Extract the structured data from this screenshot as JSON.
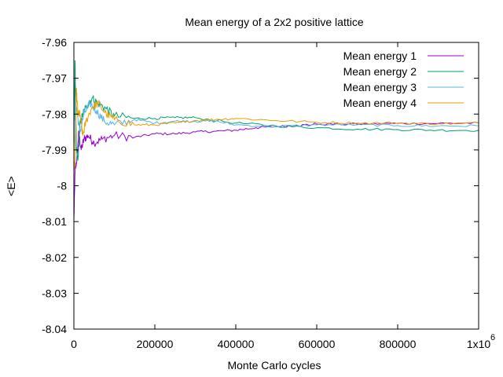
{
  "chart_data": {
    "type": "line",
    "title": "Mean energy of a 2x2 positive lattice",
    "xlabel": "Monte Carlo cycles",
    "ylabel": "<E>",
    "xlim": [
      0,
      1000000
    ],
    "ylim": [
      -8.04,
      -7.96
    ],
    "x_tick_labels": [
      "0",
      "200000",
      "400000",
      "600000",
      "800000",
      "1x10"
    ],
    "x_tick_values": [
      0,
      200000,
      400000,
      600000,
      800000,
      1000000
    ],
    "x_exponent_label": "6",
    "y_tick_labels": [
      "-7.96",
      "-7.97",
      "-7.98",
      "-7.99",
      "-8",
      "-8.01",
      "-8.02",
      "-8.03",
      "-8.04"
    ],
    "y_tick_values": [
      -7.96,
      -7.97,
      -7.98,
      -7.99,
      -8.0,
      -8.01,
      -8.02,
      -8.03,
      -8.04
    ],
    "grid": false,
    "legend_position": "top-right",
    "series": [
      {
        "name": "Mean energy 1",
        "color": "#9400d3",
        "points": [
          [
            0,
            -8.01
          ],
          [
            3000,
            -7.996
          ],
          [
            8000,
            -7.992
          ],
          [
            12000,
            -7.985
          ],
          [
            18000,
            -7.99
          ],
          [
            25000,
            -7.987
          ],
          [
            35000,
            -7.986
          ],
          [
            50000,
            -7.988
          ],
          [
            70000,
            -7.987
          ],
          [
            100000,
            -7.986
          ],
          [
            150000,
            -7.9865
          ],
          [
            200000,
            -7.9855
          ],
          [
            250000,
            -7.9855
          ],
          [
            300000,
            -7.985
          ],
          [
            350000,
            -7.9848
          ],
          [
            400000,
            -7.9845
          ],
          [
            450000,
            -7.9838
          ],
          [
            500000,
            -7.9835
          ],
          [
            550000,
            -7.9832
          ],
          [
            600000,
            -7.9828
          ],
          [
            700000,
            -7.9828
          ],
          [
            800000,
            -7.9826
          ],
          [
            900000,
            -7.9826
          ],
          [
            1000000,
            -7.9825
          ]
        ]
      },
      {
        "name": "Mean energy 2",
        "color": "#009e73",
        "points": [
          [
            0,
            -7.99
          ],
          [
            3000,
            -7.965
          ],
          [
            6000,
            -7.99
          ],
          [
            10000,
            -7.993
          ],
          [
            15000,
            -7.983
          ],
          [
            22000,
            -7.98
          ],
          [
            30000,
            -7.978
          ],
          [
            45000,
            -7.9755
          ],
          [
            60000,
            -7.977
          ],
          [
            80000,
            -7.9785
          ],
          [
            100000,
            -7.9805
          ],
          [
            150000,
            -7.9812
          ],
          [
            200000,
            -7.9812
          ],
          [
            250000,
            -7.981
          ],
          [
            300000,
            -7.981
          ],
          [
            400000,
            -7.9825
          ],
          [
            500000,
            -7.9833
          ],
          [
            600000,
            -7.9838
          ],
          [
            700000,
            -7.9842
          ],
          [
            800000,
            -7.9843
          ],
          [
            900000,
            -7.9845
          ],
          [
            1000000,
            -7.9845
          ]
        ]
      },
      {
        "name": "Mean energy 3",
        "color": "#56b4e9",
        "points": [
          [
            0,
            -7.99
          ],
          [
            4000,
            -7.975
          ],
          [
            8000,
            -7.98
          ],
          [
            15000,
            -7.985
          ],
          [
            25000,
            -7.98
          ],
          [
            40000,
            -7.977
          ],
          [
            55000,
            -7.979
          ],
          [
            75000,
            -7.982
          ],
          [
            100000,
            -7.983
          ],
          [
            150000,
            -7.9815
          ],
          [
            200000,
            -7.9825
          ],
          [
            250000,
            -7.982
          ],
          [
            300000,
            -7.982
          ],
          [
            350000,
            -7.982
          ],
          [
            400000,
            -7.983
          ],
          [
            500000,
            -7.9835
          ],
          [
            600000,
            -7.983
          ],
          [
            700000,
            -7.983
          ],
          [
            800000,
            -7.9832
          ],
          [
            900000,
            -7.9833
          ],
          [
            1000000,
            -7.9833
          ]
        ]
      },
      {
        "name": "Mean energy 4",
        "color": "#e69f00",
        "points": [
          [
            0,
            -7.995
          ],
          [
            3000,
            -7.993
          ],
          [
            6000,
            -7.973
          ],
          [
            10000,
            -7.98
          ],
          [
            15000,
            -7.98
          ],
          [
            22000,
            -7.986
          ],
          [
            30000,
            -7.982
          ],
          [
            45000,
            -7.978
          ],
          [
            60000,
            -7.977
          ],
          [
            80000,
            -7.98
          ],
          [
            100000,
            -7.9815
          ],
          [
            150000,
            -7.983
          ],
          [
            200000,
            -7.983
          ],
          [
            250000,
            -7.9825
          ],
          [
            300000,
            -7.9818
          ],
          [
            350000,
            -7.9815
          ],
          [
            400000,
            -7.9812
          ],
          [
            500000,
            -7.9818
          ],
          [
            600000,
            -7.9823
          ],
          [
            700000,
            -7.9825
          ],
          [
            800000,
            -7.9825
          ],
          [
            900000,
            -7.9827
          ],
          [
            1000000,
            -7.9825
          ]
        ]
      }
    ]
  }
}
